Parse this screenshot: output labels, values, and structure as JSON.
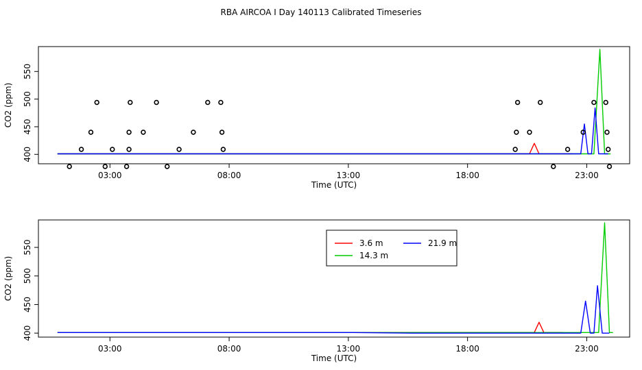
{
  "title": "RBA AIRCOA I  Day 140113  Calibrated Timeseries",
  "chart_data": [
    {
      "type": "line",
      "xlabel": "Time (UTC)",
      "ylabel": "CO2 (ppm)",
      "xlim": [
        0.0,
        24.8
      ],
      "ylim": [
        383,
        595
      ],
      "xticks": [
        3,
        8,
        13,
        18,
        23
      ],
      "xtick_labels": [
        "03:00",
        "08:00",
        "13:00",
        "18:00",
        "23:00"
      ],
      "yticks": [
        400,
        450,
        500,
        550
      ],
      "ytick_labels": [
        "400",
        "450",
        "500",
        "550"
      ],
      "series": [
        {
          "name": "3.6 m",
          "color": "#ff0000",
          "points": [
            [
              0.8,
              401
            ],
            [
              9.0,
              401
            ],
            [
              20.6,
              401
            ],
            [
              20.8,
              420
            ],
            [
              21.0,
              401
            ],
            [
              22.4,
              401
            ]
          ]
        },
        {
          "name": "14.3 m",
          "color": "#00cc00",
          "points": [
            [
              0.8,
              401
            ],
            [
              12.0,
              401
            ],
            [
              19.4,
              401
            ],
            [
              20.0,
              401
            ],
            [
              23.3,
              401
            ],
            [
              23.55,
              590
            ],
            [
              23.75,
              401
            ],
            [
              24.0,
              401
            ]
          ]
        },
        {
          "name": "21.9 m",
          "color": "#0000ff",
          "points": [
            [
              0.8,
              401
            ],
            [
              9.0,
              401
            ],
            [
              12.0,
              401
            ],
            [
              19.9,
              401
            ],
            [
              21.3,
              401
            ],
            [
              22.75,
              401
            ],
            [
              22.9,
              455
            ],
            [
              23.05,
              401
            ],
            [
              23.2,
              401
            ],
            [
              23.35,
              484
            ],
            [
              23.5,
              401
            ],
            [
              23.9,
              401
            ]
          ]
        }
      ],
      "markers": {
        "type": "open-circle",
        "points": [
          [
            1.3,
            378
          ],
          [
            1.8,
            409
          ],
          [
            2.2,
            440
          ],
          [
            2.45,
            494
          ],
          [
            2.8,
            378
          ],
          [
            3.1,
            409
          ],
          [
            3.7,
            378
          ],
          [
            3.8,
            409
          ],
          [
            3.8,
            440
          ],
          [
            3.85,
            494
          ],
          [
            4.4,
            440
          ],
          [
            4.95,
            494
          ],
          [
            5.4,
            378
          ],
          [
            5.9,
            409
          ],
          [
            6.5,
            440
          ],
          [
            7.1,
            494
          ],
          [
            7.65,
            494
          ],
          [
            7.7,
            440
          ],
          [
            7.75,
            409
          ],
          [
            20.0,
            409
          ],
          [
            20.05,
            440
          ],
          [
            20.1,
            494
          ],
          [
            20.6,
            440
          ],
          [
            21.05,
            494
          ],
          [
            21.6,
            378
          ],
          [
            22.2,
            409
          ],
          [
            22.85,
            440
          ],
          [
            23.3,
            494
          ],
          [
            23.8,
            494
          ],
          [
            23.85,
            440
          ],
          [
            23.9,
            409
          ],
          [
            23.95,
            378
          ]
        ]
      }
    },
    {
      "type": "line",
      "xlabel": "Time (UTC)",
      "ylabel": "CO2 (ppm)",
      "xlim": [
        0.0,
        24.8
      ],
      "ylim": [
        393,
        598
      ],
      "xticks": [
        3,
        8,
        13,
        18,
        23
      ],
      "xtick_labels": [
        "03:00",
        "08:00",
        "13:00",
        "18:00",
        "23:00"
      ],
      "yticks": [
        400,
        450,
        500,
        550
      ],
      "ytick_labels": [
        "400",
        "450",
        "500",
        "550"
      ],
      "legend": {
        "placement": "top-center",
        "entries": [
          {
            "label": "3.6 m",
            "color": "#ff0000"
          },
          {
            "label": "21.9 m",
            "color": "#0000ff"
          },
          {
            "label": "14.3 m",
            "color": "#00cc00"
          }
        ]
      },
      "series": [
        {
          "name": "3.6 m",
          "color": "#ff0000",
          "points": [
            [
              0.8,
              401
            ],
            [
              9.0,
              401
            ],
            [
              20.8,
              401
            ],
            [
              21.0,
              419
            ],
            [
              21.2,
              401
            ],
            [
              22.0,
              401
            ]
          ]
        },
        {
          "name": "14.3 m",
          "color": "#00cc00",
          "points": [
            [
              0.8,
              401
            ],
            [
              13.8,
              401
            ],
            [
              22.9,
              401
            ],
            [
              23.5,
              401
            ],
            [
              23.75,
              593
            ],
            [
              23.95,
              401
            ],
            [
              24.1,
              401
            ]
          ]
        },
        {
          "name": "21.9 m",
          "color": "#0000ff",
          "points": [
            [
              0.8,
              401
            ],
            [
              9.0,
              401
            ],
            [
              13.2,
              401
            ],
            [
              15.7,
              400
            ],
            [
              21.3,
              400
            ],
            [
              22.75,
              400
            ],
            [
              22.95,
              456
            ],
            [
              23.15,
              400
            ],
            [
              23.3,
              400
            ],
            [
              23.45,
              483
            ],
            [
              23.65,
              400
            ],
            [
              23.95,
              400
            ]
          ]
        }
      ]
    }
  ]
}
